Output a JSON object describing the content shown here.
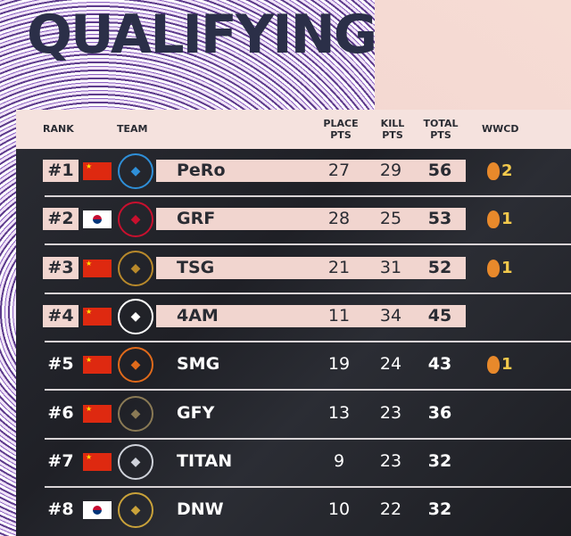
{
  "title": "QUALIFYING",
  "columns": {
    "rank": "RANK",
    "team": "TEAM",
    "place": "PLACE PTS",
    "kill": "KILL PTS",
    "total": "TOTAL PTS",
    "wwcd": "WWCD"
  },
  "colors": {
    "highlight": "#f1d5cf",
    "panel": "#23242a",
    "title": "#2b2f48",
    "wwcd": "#f2c94c"
  },
  "rows": [
    {
      "rank": "#1",
      "flag": "china",
      "team": "PeRo",
      "place": "27",
      "kill": "29",
      "total": "56",
      "wwcd": "2",
      "highlight": true
    },
    {
      "rank": "#2",
      "flag": "korea",
      "team": "GRF",
      "place": "28",
      "kill": "25",
      "total": "53",
      "wwcd": "1",
      "highlight": true
    },
    {
      "rank": "#3",
      "flag": "china",
      "team": "TSG",
      "place": "21",
      "kill": "31",
      "total": "52",
      "wwcd": "1",
      "highlight": true
    },
    {
      "rank": "#4",
      "flag": "china",
      "team": "4AM",
      "place": "11",
      "kill": "34",
      "total": "45",
      "wwcd": "",
      "highlight": true
    },
    {
      "rank": "#5",
      "flag": "china",
      "team": "SMG",
      "place": "19",
      "kill": "24",
      "total": "43",
      "wwcd": "1",
      "highlight": false
    },
    {
      "rank": "#6",
      "flag": "china",
      "team": "GFY",
      "place": "13",
      "kill": "23",
      "total": "36",
      "wwcd": "",
      "highlight": false
    },
    {
      "rank": "#7",
      "flag": "china",
      "team": "TITAN",
      "place": "9",
      "kill": "23",
      "total": "32",
      "wwcd": "",
      "highlight": false
    },
    {
      "rank": "#8",
      "flag": "korea",
      "team": "DNW",
      "place": "10",
      "kill": "22",
      "total": "32",
      "wwcd": "",
      "highlight": false
    }
  ]
}
